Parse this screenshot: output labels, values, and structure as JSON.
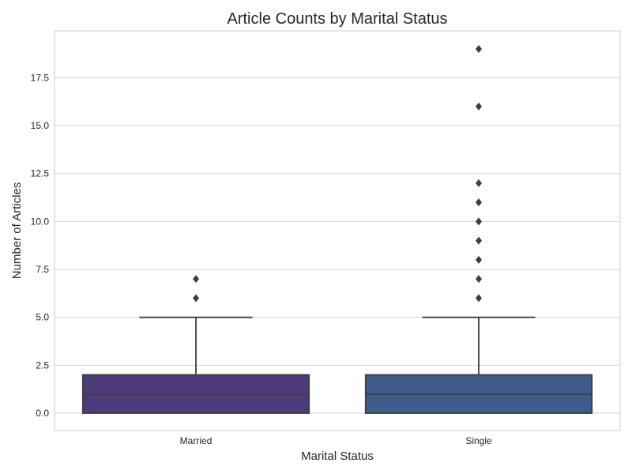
{
  "chart_data": {
    "type": "box",
    "title": "Article Counts by Marital Status",
    "xlabel": "Marital Status",
    "ylabel": "Number of Articles",
    "ylim": [
      -0.95,
      19.95
    ],
    "yticks": [
      "0.0",
      "2.5",
      "5.0",
      "7.5",
      "10.0",
      "12.5",
      "15.0",
      "17.5"
    ],
    "grid": true,
    "categories": [
      "Married",
      "Single"
    ],
    "boxes": [
      {
        "category": "Married",
        "min": 0,
        "q1": 0,
        "median": 1,
        "q3": 2,
        "whisker_high": 5,
        "outliers": [
          6,
          7
        ],
        "color": "#4c3a7a"
      },
      {
        "category": "Single",
        "min": 0,
        "q1": 0,
        "median": 1,
        "q3": 2,
        "whisker_high": 5,
        "outliers": [
          6,
          7,
          8,
          9,
          10,
          11,
          12,
          16,
          19
        ],
        "color": "#3e5c8a"
      }
    ]
  }
}
